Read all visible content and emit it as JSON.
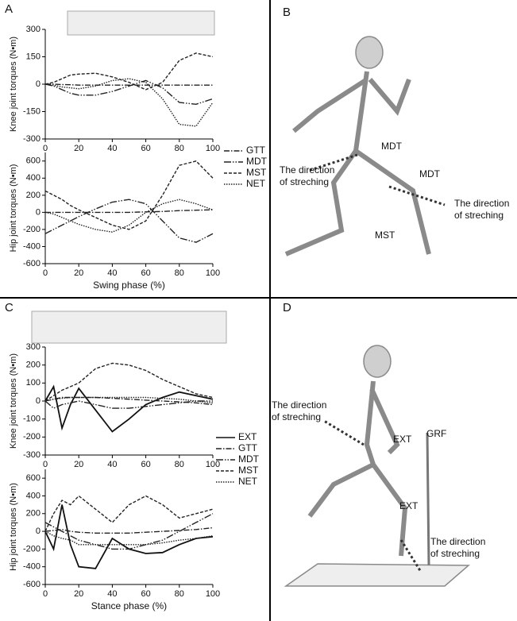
{
  "panel_labels": [
    "A",
    "B",
    "C",
    "D"
  ],
  "chart_data": [
    {
      "type": "line",
      "ylabel": "Knee joint torques (N•m)",
      "xlim": [
        0,
        100
      ],
      "xticks": [
        0,
        20,
        40,
        60,
        80,
        100
      ],
      "ylim": [
        -300,
        300
      ],
      "yticks": [
        300,
        150,
        0,
        -150,
        -300
      ],
      "legend": true,
      "x": [
        0,
        5,
        10,
        15,
        20,
        30,
        40,
        50,
        60,
        70,
        80,
        90,
        100
      ],
      "series": [
        {
          "name": "GTT",
          "color": "#222222",
          "dash": "7 2 1.5 2",
          "values": [
            0,
            0,
            -2,
            -3,
            -5,
            -5,
            -5,
            -5,
            -5,
            -5,
            -5,
            -5,
            -5
          ]
        },
        {
          "name": "MDT",
          "color": "#222222",
          "dash": "9 2 1.5 2 1.5 2",
          "values": [
            0,
            -10,
            -30,
            -50,
            -60,
            -60,
            -40,
            -10,
            20,
            -20,
            -100,
            -110,
            -80
          ]
        },
        {
          "name": "MST",
          "color": "#222222",
          "dash": "4 2",
          "values": [
            0,
            10,
            30,
            50,
            55,
            60,
            40,
            10,
            -30,
            10,
            130,
            170,
            150
          ]
        },
        {
          "name": "NET",
          "color": "#222222",
          "dash": "1.5 1.5",
          "values": [
            0,
            -5,
            -15,
            -20,
            -25,
            -10,
            20,
            30,
            10,
            -80,
            -220,
            -230,
            -100
          ]
        }
      ]
    },
    {
      "type": "line",
      "ylabel": "Hip joint torques (N•m)",
      "xlabel": "Swing phase (%)",
      "xlim": [
        0,
        100
      ],
      "xticks": [
        0,
        20,
        40,
        60,
        80,
        100
      ],
      "ylim": [
        -600,
        700
      ],
      "yticks": [
        600,
        400,
        200,
        0,
        -200,
        -400,
        -600
      ],
      "legend": false,
      "x": [
        0,
        5,
        10,
        15,
        20,
        30,
        40,
        50,
        60,
        70,
        80,
        90,
        100
      ],
      "series": [
        {
          "name": "GTT",
          "color": "#222222",
          "dash": "7 2 1.5 2",
          "values": [
            0,
            0,
            0,
            0,
            0,
            0,
            0,
            0,
            5,
            10,
            20,
            25,
            30
          ]
        },
        {
          "name": "MDT",
          "color": "#222222",
          "dash": "9 2 1.5 2 1.5 2",
          "values": [
            -250,
            -200,
            -150,
            -100,
            -50,
            40,
            120,
            150,
            100,
            -100,
            -300,
            -350,
            -250
          ]
        },
        {
          "name": "MST",
          "color": "#222222",
          "dash": "4 2",
          "values": [
            250,
            200,
            150,
            80,
            30,
            -60,
            -150,
            -200,
            -100,
            200,
            550,
            600,
            400
          ]
        },
        {
          "name": "NET",
          "color": "#222222",
          "dash": "1.5 1.5",
          "values": [
            0,
            -20,
            -60,
            -100,
            -140,
            -200,
            -230,
            -150,
            0,
            100,
            150,
            100,
            30
          ]
        }
      ]
    },
    {
      "type": "line",
      "ylabel": "Knee joint torques (N•m)",
      "xlim": [
        0,
        100
      ],
      "xticks": [
        0,
        20,
        40,
        60,
        80,
        100
      ],
      "ylim": [
        -300,
        300
      ],
      "yticks": [
        300,
        200,
        100,
        0,
        -100,
        -200,
        -300
      ],
      "legend": true,
      "x": [
        0,
        5,
        10,
        15,
        20,
        30,
        40,
        50,
        60,
        70,
        80,
        90,
        100
      ],
      "series": [
        {
          "name": "EXT",
          "color": "#111111",
          "dash": "solid",
          "values": [
            0,
            80,
            -150,
            -20,
            70,
            -50,
            -170,
            -100,
            -20,
            20,
            50,
            30,
            10
          ]
        },
        {
          "name": "GTT",
          "color": "#222222",
          "dash": "7 2 1.5 2",
          "values": [
            0,
            10,
            20,
            20,
            20,
            20,
            15,
            10,
            5,
            0,
            -5,
            -10,
            -20
          ]
        },
        {
          "name": "MDT",
          "color": "#222222",
          "dash": "9 2 1.5 2 1.5 2",
          "values": [
            0,
            -40,
            -20,
            -10,
            0,
            -20,
            -40,
            -40,
            -30,
            -20,
            -10,
            0,
            0
          ]
        },
        {
          "name": "MST",
          "color": "#222222",
          "dash": "4 2",
          "values": [
            0,
            30,
            60,
            80,
            100,
            180,
            210,
            200,
            170,
            120,
            80,
            40,
            20
          ]
        },
        {
          "name": "NET",
          "color": "#222222",
          "dash": "1.5 1.5",
          "values": [
            0,
            10,
            15,
            20,
            20,
            20,
            20,
            20,
            20,
            15,
            10,
            0,
            -10
          ]
        }
      ]
    },
    {
      "type": "line",
      "ylabel": "Hip joint torques (N•m)",
      "xlabel": "Stance phase (%)",
      "xlim": [
        0,
        100
      ],
      "xticks": [
        0,
        20,
        40,
        60,
        80,
        100
      ],
      "ylim": [
        -600,
        700
      ],
      "yticks": [
        600,
        400,
        200,
        0,
        -200,
        -400,
        -600
      ],
      "legend": false,
      "x": [
        0,
        5,
        10,
        15,
        20,
        30,
        40,
        50,
        60,
        70,
        80,
        90,
        100
      ],
      "series": [
        {
          "name": "EXT",
          "color": "#111111",
          "dash": "solid",
          "values": [
            0,
            -200,
            300,
            -150,
            -400,
            -420,
            -80,
            -200,
            -250,
            -240,
            -150,
            -80,
            -60
          ]
        },
        {
          "name": "GTT",
          "color": "#222222",
          "dash": "7 2 1.5 2",
          "values": [
            0,
            10,
            20,
            0,
            -10,
            -20,
            -20,
            -20,
            -10,
            0,
            10,
            20,
            40
          ]
        },
        {
          "name": "MDT",
          "color": "#222222",
          "dash": "9 2 1.5 2 1.5 2",
          "values": [
            100,
            50,
            0,
            -50,
            -100,
            -150,
            -200,
            -200,
            -150,
            -100,
            0,
            100,
            200
          ]
        },
        {
          "name": "MST",
          "color": "#222222",
          "dash": "4 2",
          "values": [
            0,
            200,
            350,
            300,
            400,
            250,
            100,
            300,
            400,
            300,
            150,
            200,
            250
          ]
        },
        {
          "name": "NET",
          "color": "#222222",
          "dash": "1.5 1.5",
          "values": [
            0,
            -50,
            -80,
            -100,
            -150,
            -150,
            -150,
            -150,
            -150,
            -130,
            -100,
            -80,
            -50
          ]
        }
      ]
    }
  ],
  "diagrams": {
    "B": {
      "labels": [
        {
          "lines": [
            "MDT"
          ]
        },
        {
          "lines": [
            "The direction",
            "of streching"
          ]
        },
        {
          "lines": [
            "MDT"
          ]
        },
        {
          "lines": [
            "The direction",
            "of streching"
          ]
        },
        {
          "lines": [
            "MST"
          ]
        }
      ]
    },
    "D": {
      "labels": [
        {
          "lines": [
            "The direction",
            "of streching"
          ]
        },
        {
          "lines": [
            "EXT"
          ]
        },
        {
          "lines": [
            "GRF"
          ]
        },
        {
          "lines": [
            "EXT"
          ]
        },
        {
          "lines": [
            "The direction",
            "of streching"
          ]
        }
      ]
    }
  }
}
